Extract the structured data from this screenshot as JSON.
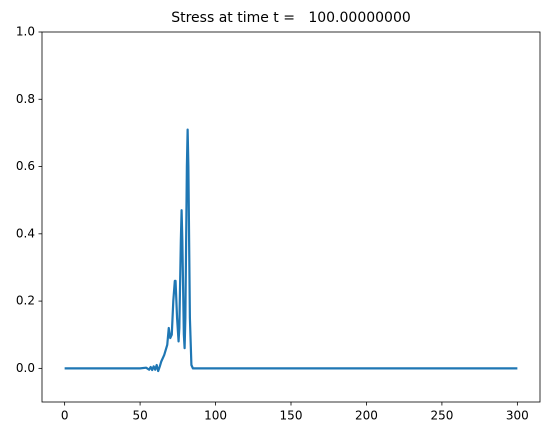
{
  "chart_data": {
    "type": "line",
    "title": "Stress at time t =   100.00000000",
    "x": [
      0,
      50,
      54,
      56,
      57,
      58,
      59,
      60,
      61,
      62,
      63,
      64,
      66,
      68,
      69,
      70,
      71,
      72,
      73,
      73.5,
      74.5,
      75.5,
      76,
      77,
      77.5,
      78,
      79,
      79.5,
      80,
      81,
      81.5,
      82,
      83,
      84,
      85,
      300
    ],
    "series": [
      {
        "color": "#1f77b4",
        "values": [
          0,
          0,
          0.002,
          -0.004,
          0.004,
          -0.005,
          0.006,
          -0.004,
          0.01,
          -0.008,
          0.005,
          0.02,
          0.04,
          0.07,
          0.12,
          0.09,
          0.1,
          0.2,
          0.26,
          0.26,
          0.15,
          0.08,
          0.12,
          0.38,
          0.47,
          0.38,
          0.1,
          0.06,
          0.15,
          0.6,
          0.71,
          0.6,
          0.15,
          0.01,
          0,
          0
        ]
      }
    ],
    "xlim": [
      -15,
      315
    ],
    "ylim": [
      -0.1,
      1.0
    ],
    "xticks": [
      0,
      50,
      100,
      150,
      200,
      250,
      300
    ],
    "yticks": [
      {
        "value": 0,
        "label": "0.0"
      },
      {
        "value": 0.2,
        "label": "0.2"
      },
      {
        "value": 0.4,
        "label": "0.4"
      },
      {
        "value": 0.6,
        "label": "0.6"
      },
      {
        "value": 0.8,
        "label": "0.8"
      },
      {
        "value": 1.0,
        "label": "1.0"
      }
    ],
    "grid": false
  }
}
